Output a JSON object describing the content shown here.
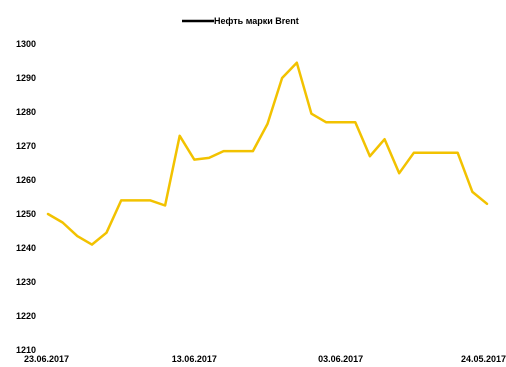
{
  "chart_data": {
    "type": "line",
    "title": "",
    "xlabel": "",
    "ylabel": "",
    "legend_position": "top-center",
    "grid": false,
    "x_reversed": true,
    "ylim": [
      1210,
      1300
    ],
    "yticks": [
      1210,
      1220,
      1230,
      1240,
      1250,
      1260,
      1270,
      1280,
      1290,
      1300
    ],
    "x_tick_labels": [
      {
        "index": 0,
        "label": "23.06.2017"
      },
      {
        "index": 8,
        "label": "13.06.2017"
      },
      {
        "index": 16,
        "label": "03.06.2017"
      },
      {
        "index": 24,
        "label": "24.05.2017"
      }
    ],
    "series": [
      {
        "name": "Нефть марки Brent",
        "legend_color": "#000000",
        "color": "#F2C200",
        "values": [
          1250,
          1247.5,
          1243.5,
          1241,
          1244.5,
          1254,
          1254,
          1254,
          1252.5,
          1273,
          1266,
          1266.5,
          1268.5,
          1268.5,
          1268.5,
          1276.5,
          1290,
          1294.5,
          1279.5,
          1277,
          1277,
          1277,
          1267,
          1272,
          1262,
          1268,
          1268,
          1268,
          1268,
          1256.5,
          1253
        ]
      }
    ]
  }
}
